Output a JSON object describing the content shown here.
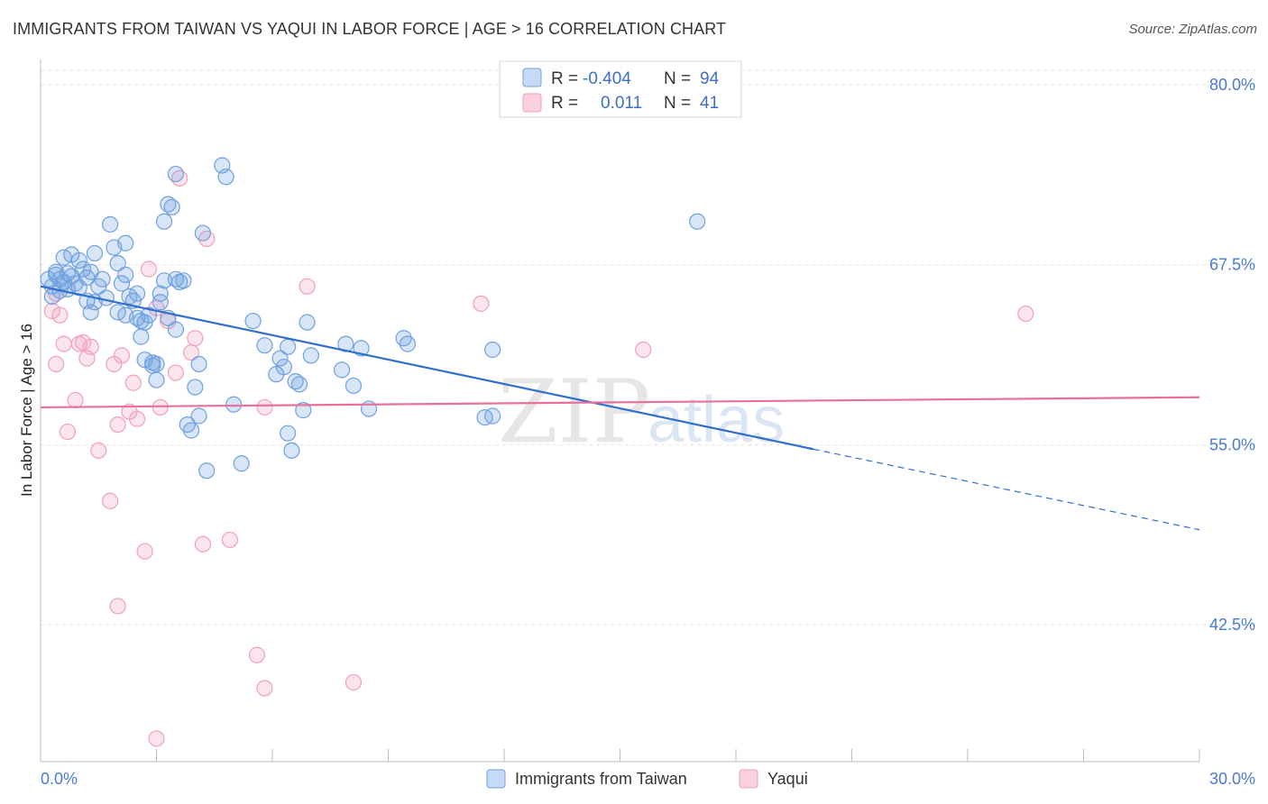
{
  "header": {
    "title": "IMMIGRANTS FROM TAIWAN VS YAQUI IN LABOR FORCE | AGE > 16 CORRELATION CHART",
    "source": "Source: ZipAtlas.com"
  },
  "watermark": {
    "zip": "ZIP",
    "atlas": "atlas"
  },
  "stats": [
    {
      "r_label": "R =",
      "r_value": "-0.404",
      "n_label": "N =",
      "n_value": "94",
      "color": "#6fa0e0"
    },
    {
      "r_label": "R =",
      "r_value": "0.011",
      "n_label": "N =",
      "n_value": "41",
      "color": "#f0a0bb"
    }
  ],
  "legend": [
    {
      "label": "Immigrants from Taiwan",
      "color": "#6fa0e0"
    },
    {
      "label": "Yaqui",
      "color": "#f0a0bb"
    }
  ],
  "colors": {
    "blue": "#6fa0e0",
    "blue_line": "#2f6fcf",
    "pink": "#f0a0bb",
    "pink_line": "#e8709a",
    "tick": "#4a7bd0"
  },
  "chart_data": {
    "type": "scatter",
    "title": "IMMIGRANTS FROM TAIWAN VS YAQUI IN LABOR FORCE | AGE > 16 CORRELATION CHART",
    "xlabel": "",
    "ylabel": "In Labor Force | Age > 16",
    "xlim": [
      0,
      30
    ],
    "ylim": [
      33,
      81
    ],
    "x_tick_labels": [
      "0.0%",
      "30.0%"
    ],
    "y_ticks": [
      42.5,
      55.0,
      67.5,
      80.0
    ],
    "y_tick_labels": [
      "42.5%",
      "55.0%",
      "67.5%",
      "80.0%"
    ],
    "series": [
      {
        "name": "Immigrants from Taiwan",
        "color": "#6fa0e0",
        "trend": {
          "x": [
            0,
            20
          ],
          "y": [
            66.0,
            54.7
          ],
          "dashed_to": [
            30,
            49.1
          ]
        },
        "points": [
          [
            0.2,
            66.5
          ],
          [
            0.3,
            66.0
          ],
          [
            0.4,
            66.8
          ],
          [
            0.5,
            65.7
          ],
          [
            0.6,
            66.3
          ],
          [
            0.7,
            66.9
          ],
          [
            0.6,
            68.0
          ],
          [
            0.8,
            66.7
          ],
          [
            0.9,
            66.2
          ],
          [
            1.0,
            67.8
          ],
          [
            1.1,
            67.2
          ],
          [
            1.0,
            65.9
          ],
          [
            0.8,
            68.2
          ],
          [
            1.2,
            65.0
          ],
          [
            1.3,
            64.2
          ],
          [
            1.4,
            64.9
          ],
          [
            1.5,
            66.0
          ],
          [
            1.3,
            67.0
          ],
          [
            1.4,
            68.3
          ],
          [
            1.6,
            66.5
          ],
          [
            1.7,
            65.2
          ],
          [
            1.8,
            70.3
          ],
          [
            1.9,
            68.7
          ],
          [
            2.0,
            64.2
          ],
          [
            2.0,
            67.6
          ],
          [
            2.1,
            66.2
          ],
          [
            2.2,
            66.8
          ],
          [
            2.2,
            69.0
          ],
          [
            2.3,
            65.3
          ],
          [
            2.4,
            65.0
          ],
          [
            2.5,
            65.5
          ],
          [
            2.5,
            63.8
          ],
          [
            2.6,
            63.6
          ],
          [
            2.6,
            62.5
          ],
          [
            2.7,
            63.5
          ],
          [
            2.7,
            60.9
          ],
          [
            2.8,
            64.0
          ],
          [
            2.9,
            60.5
          ],
          [
            2.9,
            60.7
          ],
          [
            3.0,
            59.5
          ],
          [
            3.1,
            64.9
          ],
          [
            3.1,
            65.5
          ],
          [
            3.2,
            66.4
          ],
          [
            3.3,
            63.8
          ],
          [
            3.2,
            70.5
          ],
          [
            3.3,
            71.7
          ],
          [
            3.4,
            71.5
          ],
          [
            3.5,
            63.0
          ],
          [
            3.5,
            66.5
          ],
          [
            3.6,
            66.3
          ],
          [
            3.7,
            66.4
          ],
          [
            3.8,
            56.4
          ],
          [
            3.9,
            56.0
          ],
          [
            4.1,
            57.0
          ],
          [
            4.1,
            60.6
          ],
          [
            4.2,
            69.7
          ],
          [
            4.3,
            53.2
          ],
          [
            3.5,
            73.8
          ],
          [
            4.7,
            74.4
          ],
          [
            4.8,
            73.6
          ],
          [
            5.0,
            57.8
          ],
          [
            5.2,
            53.7
          ],
          [
            5.5,
            63.6
          ],
          [
            5.8,
            61.9
          ],
          [
            6.1,
            59.9
          ],
          [
            6.2,
            61.0
          ],
          [
            6.3,
            60.4
          ],
          [
            6.4,
            55.8
          ],
          [
            6.4,
            61.8
          ],
          [
            6.5,
            54.6
          ],
          [
            6.6,
            59.4
          ],
          [
            6.7,
            59.2
          ],
          [
            6.8,
            57.4
          ],
          [
            6.9,
            63.5
          ],
          [
            7.0,
            61.2
          ],
          [
            7.8,
            60.2
          ],
          [
            7.9,
            62.0
          ],
          [
            8.1,
            59.1
          ],
          [
            8.3,
            61.7
          ],
          [
            8.5,
            57.5
          ],
          [
            9.4,
            62.4
          ],
          [
            9.5,
            62.0
          ],
          [
            11.5,
            56.9
          ],
          [
            11.7,
            57.0
          ],
          [
            11.7,
            61.6
          ],
          [
            17.0,
            70.5
          ],
          [
            0.3,
            65.3
          ],
          [
            0.5,
            66.5
          ],
          [
            1.2,
            66.6
          ],
          [
            0.7,
            65.8
          ],
          [
            0.4,
            67.0
          ],
          [
            2.2,
            64.0
          ],
          [
            3.0,
            60.6
          ],
          [
            4.0,
            59.0
          ]
        ]
      },
      {
        "name": "Yaqui",
        "color": "#f0a0bb",
        "trend": {
          "x": [
            0,
            30
          ],
          "y": [
            57.6,
            58.3
          ]
        },
        "points": [
          [
            0.3,
            64.3
          ],
          [
            0.4,
            65.5
          ],
          [
            0.4,
            60.6
          ],
          [
            0.5,
            64.0
          ],
          [
            0.6,
            62.0
          ],
          [
            0.7,
            55.9
          ],
          [
            0.9,
            58.1
          ],
          [
            1.0,
            62.0
          ],
          [
            1.1,
            62.1
          ],
          [
            1.2,
            61.0
          ],
          [
            1.3,
            61.8
          ],
          [
            1.5,
            54.6
          ],
          [
            1.8,
            51.1
          ],
          [
            1.9,
            60.6
          ],
          [
            2.0,
            56.4
          ],
          [
            2.1,
            61.2
          ],
          [
            2.3,
            57.3
          ],
          [
            2.4,
            59.3
          ],
          [
            2.5,
            56.8
          ],
          [
            2.7,
            47.6
          ],
          [
            2.8,
            67.2
          ],
          [
            3.0,
            64.5
          ],
          [
            3.1,
            57.6
          ],
          [
            3.3,
            63.6
          ],
          [
            3.5,
            60.0
          ],
          [
            3.6,
            73.5
          ],
          [
            3.9,
            61.4
          ],
          [
            4.0,
            62.4
          ],
          [
            4.2,
            48.1
          ],
          [
            4.3,
            69.3
          ],
          [
            4.9,
            48.4
          ],
          [
            5.6,
            40.4
          ],
          [
            5.8,
            38.1
          ],
          [
            5.8,
            57.6
          ],
          [
            2.0,
            43.8
          ],
          [
            3.0,
            34.6
          ],
          [
            6.9,
            66.0
          ],
          [
            8.1,
            38.5
          ],
          [
            11.4,
            64.8
          ],
          [
            15.6,
            61.6
          ],
          [
            25.5,
            64.1
          ]
        ]
      }
    ]
  }
}
